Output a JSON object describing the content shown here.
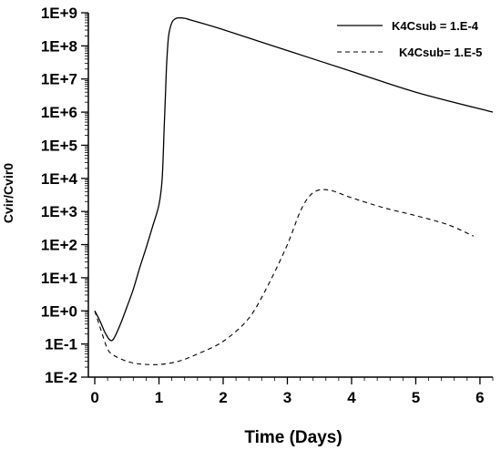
{
  "chart_data": {
    "type": "line",
    "xlabel": "Time (Days)",
    "ylabel": "Cvir/Cvir0",
    "yscale": "log",
    "xlim": [
      -0.1,
      6.2
    ],
    "ylim": [
      0.01,
      1000000000
    ],
    "x_ticks": [
      "0",
      "1",
      "2",
      "3",
      "4",
      "5",
      "6"
    ],
    "y_ticks": [
      "1E+9",
      "1E+8",
      "1E+7",
      "1E+6",
      "1E+5",
      "1E+4",
      "1E+3",
      "1E+2",
      "1E+1",
      "1E+0",
      "1E-1",
      "1E-2"
    ],
    "grid": false,
    "legend_position": "top-right",
    "series": [
      {
        "name": "K4Csub = 1.E-4",
        "style": "solid",
        "color": "#000000",
        "x": [
          0,
          0.08,
          0.16,
          0.24,
          0.3,
          0.4,
          0.5,
          0.6,
          0.7,
          0.8,
          0.9,
          1.0,
          1.05,
          1.08,
          1.1,
          1.12,
          1.15,
          1.2,
          1.25,
          1.3,
          1.4,
          1.5,
          2.0,
          3.0,
          4.0,
          5.0,
          6.2
        ],
        "y": [
          1.0,
          0.5,
          0.22,
          0.13,
          0.15,
          0.4,
          1.3,
          4.5,
          20,
          80,
          350,
          1600,
          10000,
          300000,
          3000000,
          30000000,
          200000000,
          500000000,
          650000000,
          700000000,
          680000000,
          600000000,
          310000000,
          72000000,
          17000000,
          4000000,
          1000000
        ]
      },
      {
        "name": "K4Csub= 1.E-5",
        "style": "dashed",
        "color": "#000000",
        "x": [
          0,
          0.1,
          0.2,
          0.3,
          0.5,
          0.7,
          1.0,
          1.3,
          1.6,
          2.0,
          2.4,
          2.7,
          3.0,
          3.2,
          3.35,
          3.5,
          3.7,
          4.0,
          4.5,
          5.0,
          5.5,
          5.9
        ],
        "y": [
          1.0,
          0.25,
          0.07,
          0.045,
          0.03,
          0.025,
          0.024,
          0.03,
          0.05,
          0.12,
          0.6,
          6,
          100,
          1000,
          3000,
          4500,
          4200,
          2600,
          1300,
          750,
          400,
          180
        ]
      }
    ]
  }
}
